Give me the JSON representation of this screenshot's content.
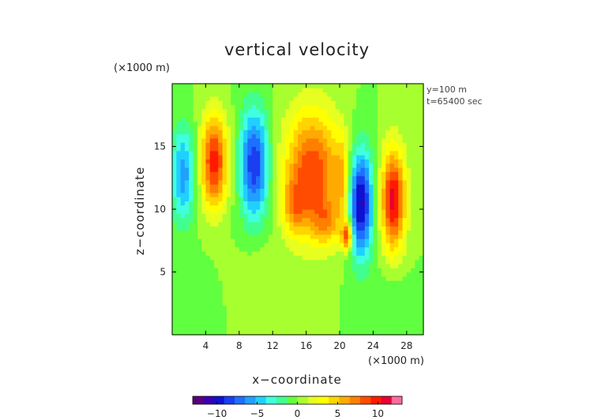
{
  "chart_data": {
    "type": "heatmap",
    "title": "vertical velocity",
    "xlabel": "x−coordinate",
    "ylabel": "z−coordinate",
    "x_unit_label": "(×1000 m)",
    "y_unit_label": "(×1000 m)",
    "annotations": [
      "y=100 m",
      "t=65400 sec"
    ],
    "xlim": [
      0,
      30
    ],
    "ylim": [
      0,
      20
    ],
    "x_ticks": [
      4,
      8,
      12,
      16,
      20,
      24,
      28
    ],
    "x_tick_labels": [
      "4",
      "8",
      "12",
      "16",
      "20",
      "24",
      "28"
    ],
    "y_ticks": [
      5,
      10,
      15
    ],
    "y_tick_labels": [
      "5",
      "10",
      "15"
    ],
    "colorbar": {
      "range": [
        -13,
        13
      ],
      "ticks": [
        -10,
        -5,
        0,
        5,
        10
      ],
      "tick_labels": [
        "−10",
        "−5",
        "0",
        "5",
        "10"
      ],
      "colors": [
        "#5a007a",
        "#3a00b0",
        "#1010d0",
        "#1a3ef0",
        "#1f6fff",
        "#20a0ff",
        "#20d0ff",
        "#40ffe0",
        "#40ff90",
        "#60ff40",
        "#a8ff30",
        "#e6ff20",
        "#ffff00",
        "#ffd400",
        "#ffaa00",
        "#ff7f00",
        "#ff4c00",
        "#ff1a00",
        "#e60030",
        "#ff6aa0"
      ]
    },
    "features": [
      {
        "x": 1.3,
        "z": 12.8,
        "value": -6,
        "sx": 1.0,
        "sz": 2.6
      },
      {
        "x": 5.0,
        "z": 13.8,
        "value": 10,
        "sx": 1.1,
        "sz": 2.6
      },
      {
        "x": 9.8,
        "z": 13.6,
        "value": -9,
        "sx": 1.2,
        "sz": 3.0
      },
      {
        "x": 16.7,
        "z": 13.0,
        "value": 9,
        "sx": 2.3,
        "sz": 3.4
      },
      {
        "x": 14.6,
        "z": 10.2,
        "value": 4,
        "sx": 1.0,
        "sz": 1.5
      },
      {
        "x": 18.5,
        "z": 9.0,
        "value": 4,
        "sx": 1.3,
        "sz": 1.3
      },
      {
        "x": 20.3,
        "z": 12.5,
        "value": 4,
        "sx": 0.6,
        "sz": 2.2
      },
      {
        "x": 20.9,
        "z": 7.9,
        "value": 9,
        "sx": 0.45,
        "sz": 0.8
      },
      {
        "x": 22.5,
        "z": 10.5,
        "value": -11,
        "sx": 1.0,
        "sz": 2.9
      },
      {
        "x": 26.4,
        "z": 10.8,
        "value": 11,
        "sx": 1.0,
        "sz": 2.8
      },
      {
        "x": 1.5,
        "z": 4.0,
        "value": -1,
        "sx": 2.0,
        "sz": 1.5
      },
      {
        "x": 11.0,
        "z": 5.0,
        "value": 1,
        "sx": 2.5,
        "sz": 1.5
      },
      {
        "x": 26.0,
        "z": 3.0,
        "value": -1,
        "sx": 2.0,
        "sz": 1.5
      }
    ]
  }
}
